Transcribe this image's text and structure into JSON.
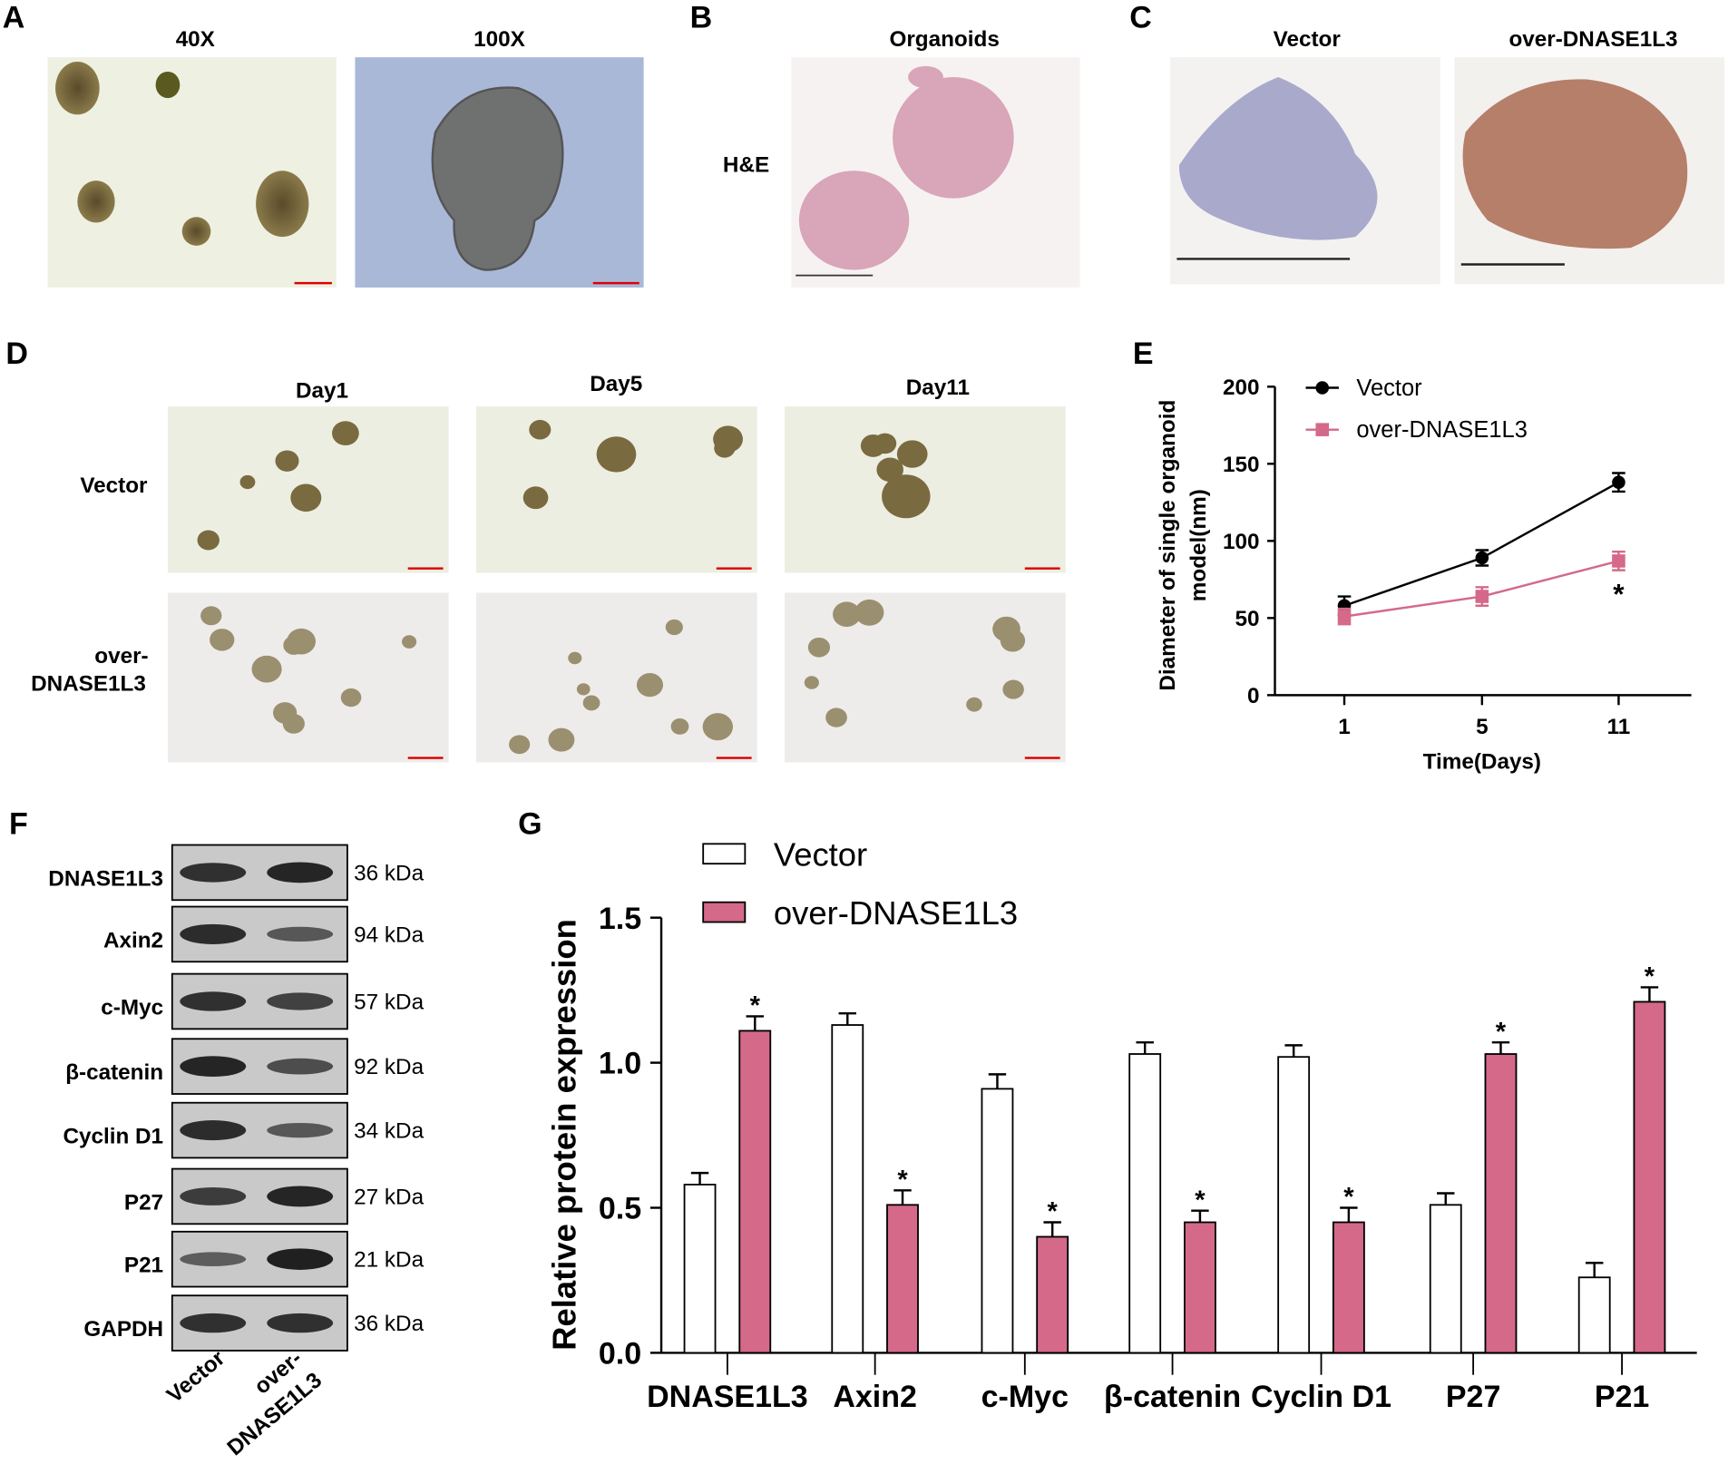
{
  "panels": {
    "A": {
      "label": "A",
      "titles": [
        "40X",
        "100X"
      ]
    },
    "B": {
      "label": "B",
      "title": "Organoids",
      "row_label": "H&E"
    },
    "C": {
      "label": "C",
      "titles": [
        "Vector",
        "over-DNASE1L3"
      ]
    },
    "D": {
      "label": "D",
      "cols": [
        "Day1",
        "Day5",
        "Day11"
      ],
      "rows": [
        "Vector",
        "over-",
        "DNASE1L3"
      ]
    },
    "E": {
      "label": "E"
    },
    "F": {
      "label": "F",
      "proteins": [
        "DNASE1L3",
        "Axin2",
        "c-Myc",
        "β-catenin",
        "Cyclin D1",
        "P27",
        "P21",
        "GAPDH"
      ],
      "sizes": [
        "36 kDa",
        "94 kDa",
        "57 kDa",
        "92 kDa",
        "34 kDa",
        "27 kDa",
        "21 kDa",
        "36 kDa"
      ],
      "lanes": [
        "Vector",
        "over-",
        "DNASE1L3"
      ],
      "band_intensity": {
        "vector": [
          0.8,
          0.85,
          0.8,
          0.9,
          0.85,
          0.7,
          0.4,
          0.8
        ],
        "over": [
          0.9,
          0.45,
          0.65,
          0.55,
          0.45,
          0.9,
          0.95,
          0.8
        ]
      }
    },
    "G": {
      "label": "G"
    }
  },
  "colors": {
    "vector_fill": "#ffffff",
    "over": "#d4698a",
    "vector_line": "#000000"
  },
  "chart_data": [
    {
      "type": "line",
      "xlabel": "Time(Days)",
      "ylabel": [
        "Diameter of single organoid",
        "model(nm)"
      ],
      "x": [
        1,
        5,
        11
      ],
      "x_ticks": [
        "1",
        "5",
        "11"
      ],
      "ylim": [
        0,
        200
      ],
      "y_ticks": [
        "0",
        "50",
        "100",
        "150",
        "200"
      ],
      "legend_position": "top-left",
      "series": [
        {
          "name": "Vector",
          "values": [
            58,
            89,
            138
          ],
          "errors": [
            6,
            5,
            6
          ],
          "marker": "circle"
        },
        {
          "name": "over-DNASE1L3",
          "values": [
            51,
            64,
            87
          ],
          "errors": [
            5,
            6,
            6
          ],
          "marker": "square"
        }
      ],
      "annotations": [
        {
          "x": 11,
          "text": "*"
        }
      ]
    },
    {
      "type": "bar",
      "categories": [
        "DNASE1L3",
        "Axin2",
        "c-Myc",
        "β-catenin",
        "Cyclin D1",
        "P27",
        "P21"
      ],
      "ylabel": "Relative protein expression",
      "ylim": [
        0,
        1.5
      ],
      "y_ticks": [
        "0.0",
        "0.5",
        "1.0",
        "1.5"
      ],
      "legend_position": "top-left",
      "series": [
        {
          "name": "Vector",
          "values": [
            0.58,
            1.13,
            0.91,
            1.03,
            1.02,
            0.51,
            0.26
          ],
          "errors": [
            0.04,
            0.04,
            0.05,
            0.04,
            0.04,
            0.04,
            0.05
          ]
        },
        {
          "name": "over-DNASE1L3",
          "values": [
            1.11,
            0.51,
            0.4,
            0.45,
            0.45,
            1.03,
            1.21
          ],
          "errors": [
            0.05,
            0.05,
            0.05,
            0.04,
            0.05,
            0.04,
            0.05
          ]
        }
      ],
      "significance": [
        "*",
        "*",
        "*",
        "*",
        "*",
        "*",
        "*"
      ]
    }
  ]
}
